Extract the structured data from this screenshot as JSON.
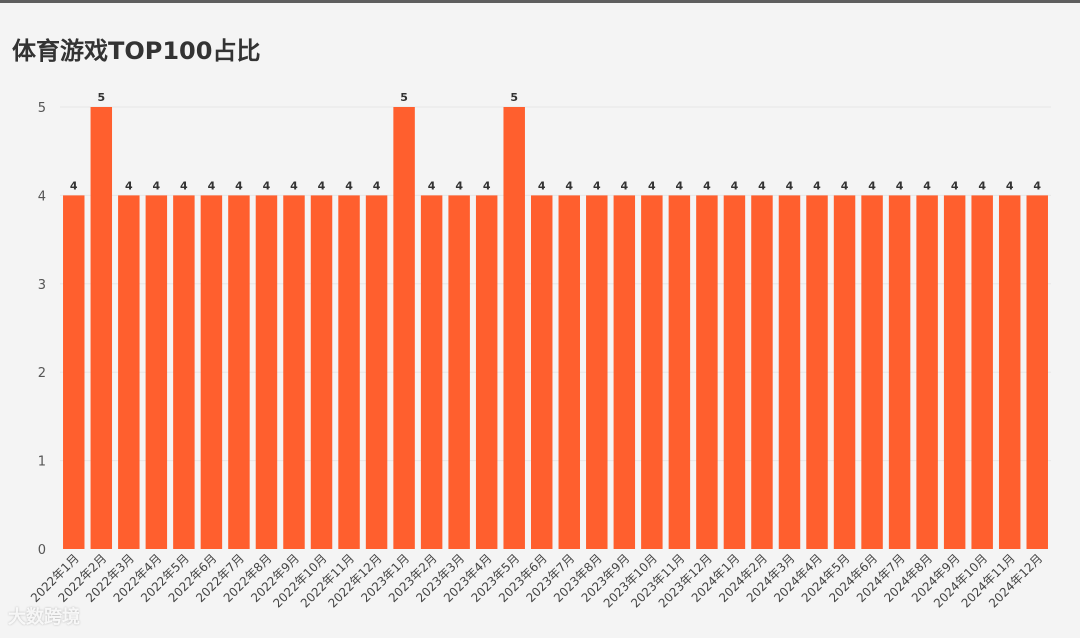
{
  "chart_data": {
    "type": "bar",
    "title": "体育游戏TOP100占比",
    "xlabel": "",
    "ylabel": "",
    "ylim": [
      0,
      5
    ],
    "yticks": [
      0,
      1,
      2,
      3,
      4,
      5
    ],
    "grid": true,
    "legend": "none",
    "color": "#ff5f2e",
    "categories": [
      "2022年1月",
      "2022年2月",
      "2022年3月",
      "2022年4月",
      "2022年5月",
      "2022年6月",
      "2022年7月",
      "2022年8月",
      "2022年9月",
      "2022年10月",
      "2022年11月",
      "2022年12月",
      "2023年1月",
      "2023年2月",
      "2023年3月",
      "2023年4月",
      "2023年5月",
      "2023年6月",
      "2023年7月",
      "2023年8月",
      "2023年9月",
      "2023年10月",
      "2023年11月",
      "2023年12月",
      "2024年1月",
      "2024年2月",
      "2024年3月",
      "2024年4月",
      "2024年5月",
      "2024年6月",
      "2024年7月",
      "2024年8月",
      "2024年9月",
      "2024年10月",
      "2024年11月",
      "2024年12月"
    ],
    "values": [
      4,
      5,
      4,
      4,
      4,
      4,
      4,
      4,
      4,
      4,
      4,
      4,
      5,
      4,
      4,
      4,
      5,
      4,
      4,
      4,
      4,
      4,
      4,
      4,
      4,
      4,
      4,
      4,
      4,
      4,
      4,
      4,
      4,
      4,
      4,
      4
    ]
  },
  "watermark": "大数跨境"
}
